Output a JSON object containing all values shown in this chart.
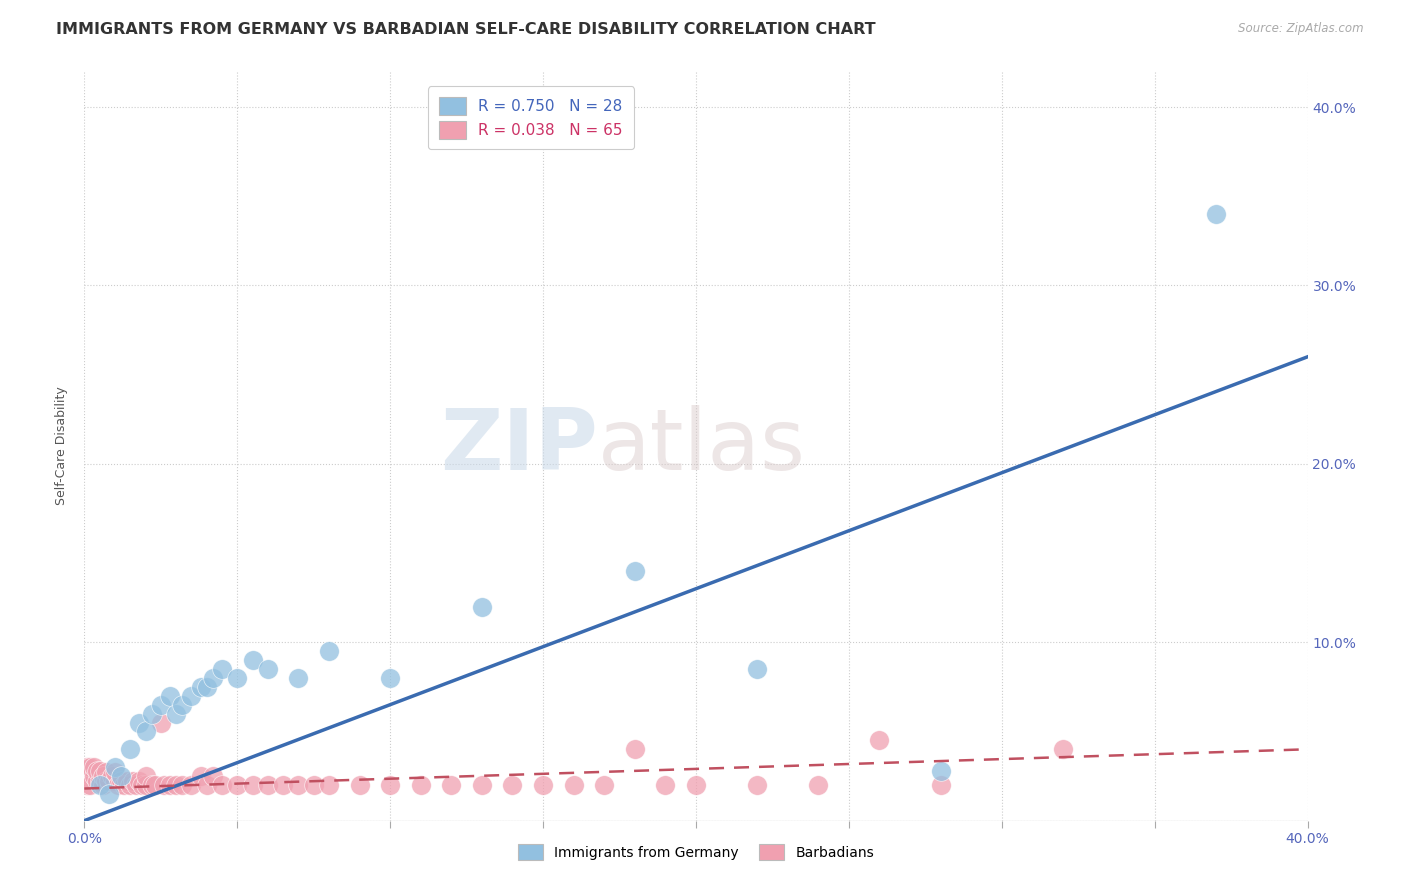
{
  "title": "IMMIGRANTS FROM GERMANY VS BARBADIAN SELF-CARE DISABILITY CORRELATION CHART",
  "source_text": "Source: ZipAtlas.com",
  "ylabel": "Self-Care Disability",
  "xlim": [
    0.0,
    0.4
  ],
  "ylim": [
    0.0,
    0.42
  ],
  "xticks": [
    0.0,
    0.05,
    0.1,
    0.15,
    0.2,
    0.25,
    0.3,
    0.35,
    0.4
  ],
  "yticks_right": [
    0.0,
    0.1,
    0.2,
    0.3,
    0.4
  ],
  "yticklabels_right": [
    "",
    "10.0%",
    "20.0%",
    "30.0%",
    "40.0%"
  ],
  "watermark_zip": "ZIP",
  "watermark_atlas": "atlas",
  "blue_color": "#92c0e0",
  "pink_color": "#f0a0b0",
  "blue_line_color": "#3a6bb0",
  "pink_line_color": "#c05060",
  "R_blue": 0.75,
  "N_blue": 28,
  "R_pink": 0.038,
  "N_pink": 65,
  "blue_scatter_x": [
    0.005,
    0.008,
    0.01,
    0.012,
    0.015,
    0.018,
    0.02,
    0.022,
    0.025,
    0.028,
    0.03,
    0.032,
    0.035,
    0.038,
    0.04,
    0.042,
    0.045,
    0.05,
    0.055,
    0.06,
    0.07,
    0.08,
    0.1,
    0.13,
    0.18,
    0.22,
    0.28,
    0.37
  ],
  "blue_scatter_y": [
    0.02,
    0.015,
    0.03,
    0.025,
    0.04,
    0.055,
    0.05,
    0.06,
    0.065,
    0.07,
    0.06,
    0.065,
    0.07,
    0.075,
    0.075,
    0.08,
    0.085,
    0.08,
    0.09,
    0.085,
    0.08,
    0.095,
    0.08,
    0.12,
    0.14,
    0.085,
    0.028,
    0.34
  ],
  "pink_scatter_x": [
    0.001,
    0.001,
    0.002,
    0.002,
    0.003,
    0.003,
    0.004,
    0.004,
    0.005,
    0.005,
    0.006,
    0.006,
    0.007,
    0.007,
    0.008,
    0.009,
    0.01,
    0.01,
    0.011,
    0.012,
    0.013,
    0.014,
    0.015,
    0.016,
    0.017,
    0.018,
    0.019,
    0.02,
    0.02,
    0.022,
    0.023,
    0.025,
    0.026,
    0.028,
    0.03,
    0.032,
    0.035,
    0.038,
    0.04,
    0.042,
    0.045,
    0.05,
    0.055,
    0.06,
    0.065,
    0.07,
    0.075,
    0.08,
    0.09,
    0.1,
    0.11,
    0.12,
    0.13,
    0.14,
    0.15,
    0.16,
    0.17,
    0.18,
    0.19,
    0.2,
    0.22,
    0.24,
    0.26,
    0.28,
    0.32
  ],
  "pink_scatter_y": [
    0.02,
    0.03,
    0.02,
    0.03,
    0.025,
    0.03,
    0.022,
    0.028,
    0.022,
    0.028,
    0.02,
    0.025,
    0.022,
    0.027,
    0.022,
    0.025,
    0.022,
    0.027,
    0.02,
    0.022,
    0.02,
    0.022,
    0.02,
    0.022,
    0.02,
    0.022,
    0.02,
    0.02,
    0.025,
    0.02,
    0.02,
    0.055,
    0.02,
    0.02,
    0.02,
    0.02,
    0.02,
    0.025,
    0.02,
    0.025,
    0.02,
    0.02,
    0.02,
    0.02,
    0.02,
    0.02,
    0.02,
    0.02,
    0.02,
    0.02,
    0.02,
    0.02,
    0.02,
    0.02,
    0.02,
    0.02,
    0.02,
    0.04,
    0.02,
    0.02,
    0.02,
    0.02,
    0.045,
    0.02,
    0.04
  ],
  "blue_line_x": [
    0.0,
    0.4
  ],
  "blue_line_y": [
    0.0,
    0.26
  ],
  "pink_line_x": [
    0.0,
    0.4
  ],
  "pink_line_y": [
    0.018,
    0.04
  ],
  "grid_color": "#cccccc",
  "background_color": "#ffffff",
  "title_fontsize": 11.5,
  "axis_label_fontsize": 9,
  "tick_fontsize": 10,
  "legend_fontsize": 11
}
